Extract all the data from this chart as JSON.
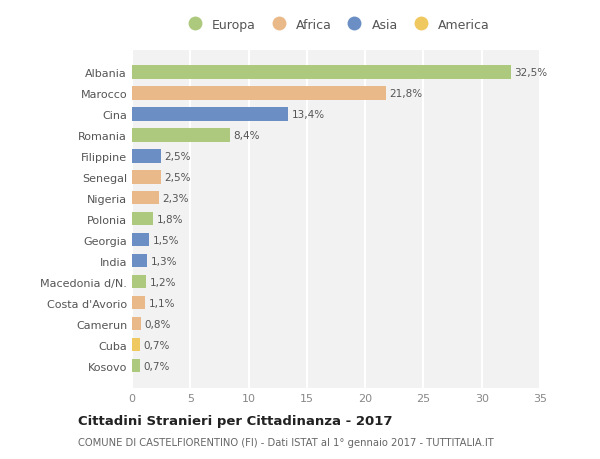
{
  "categories": [
    "Albania",
    "Marocco",
    "Cina",
    "Romania",
    "Filippine",
    "Senegal",
    "Nigeria",
    "Polonia",
    "Georgia",
    "India",
    "Macedonia d/N.",
    "Costa d'Avorio",
    "Camerun",
    "Cuba",
    "Kosovo"
  ],
  "values": [
    32.5,
    21.8,
    13.4,
    8.4,
    2.5,
    2.5,
    2.3,
    1.8,
    1.5,
    1.3,
    1.2,
    1.1,
    0.8,
    0.7,
    0.7
  ],
  "labels": [
    "32,5%",
    "21,8%",
    "13,4%",
    "8,4%",
    "2,5%",
    "2,5%",
    "2,3%",
    "1,8%",
    "1,5%",
    "1,3%",
    "1,2%",
    "1,1%",
    "0,8%",
    "0,7%",
    "0,7%"
  ],
  "continents": [
    "Europa",
    "Africa",
    "Asia",
    "Europa",
    "Asia",
    "Africa",
    "Africa",
    "Europa",
    "Asia",
    "Asia",
    "Europa",
    "Africa",
    "Africa",
    "America",
    "Europa"
  ],
  "colors": {
    "Europa": "#adc97e",
    "Africa": "#eab98a",
    "Asia": "#6b8fc4",
    "America": "#f0c860"
  },
  "legend_order": [
    "Europa",
    "Africa",
    "Asia",
    "America"
  ],
  "title": "Cittadini Stranieri per Cittadinanza - 2017",
  "subtitle": "COMUNE DI CASTELFIORENTINO (FI) - Dati ISTAT al 1° gennaio 2017 - TUTTITALIA.IT",
  "xlim": [
    0,
    35
  ],
  "xticks": [
    0,
    5,
    10,
    15,
    20,
    25,
    30,
    35
  ],
  "background_color": "#ffffff",
  "plot_bg_color": "#f2f2f2",
  "grid_color": "#ffffff",
  "bar_height": 0.65
}
